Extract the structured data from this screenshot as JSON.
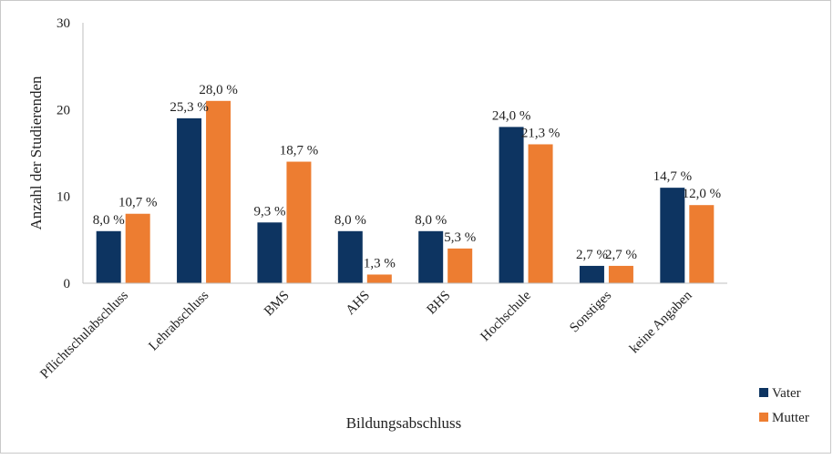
{
  "chart_data": {
    "type": "bar",
    "xlabel": "Bildungsabschluss",
    "ylabel": "Anzahl der Studierenden",
    "ylim": [
      0,
      30
    ],
    "yticks": [
      0,
      10,
      20,
      30
    ],
    "grid": false,
    "legend_position": "bottom-right",
    "categories": [
      "Pflichtschulabschluss",
      "Lehrabschluss",
      "BMS",
      "AHS",
      "BHS",
      "Hochschule",
      "Sonstiges",
      "keine Angaben"
    ],
    "series": [
      {
        "name": "Vater",
        "color": "#0d3461",
        "values": [
          6,
          19,
          7,
          6,
          6,
          18,
          2,
          11
        ],
        "labels": [
          "8,0 %",
          "25,3 %",
          "9,3 %",
          "8,0 %",
          "8,0 %",
          "24,0 %",
          "2,7 %",
          "14,7 %"
        ]
      },
      {
        "name": "Mutter",
        "color": "#ed7d31",
        "values": [
          8,
          21,
          14,
          1,
          4,
          16,
          2,
          9
        ],
        "labels": [
          "10,7 %",
          "28,0 %",
          "18,7 %",
          "1,3 %",
          "5,3 %",
          "21,3 %",
          "2,7 %",
          "12,0 %"
        ]
      }
    ]
  }
}
